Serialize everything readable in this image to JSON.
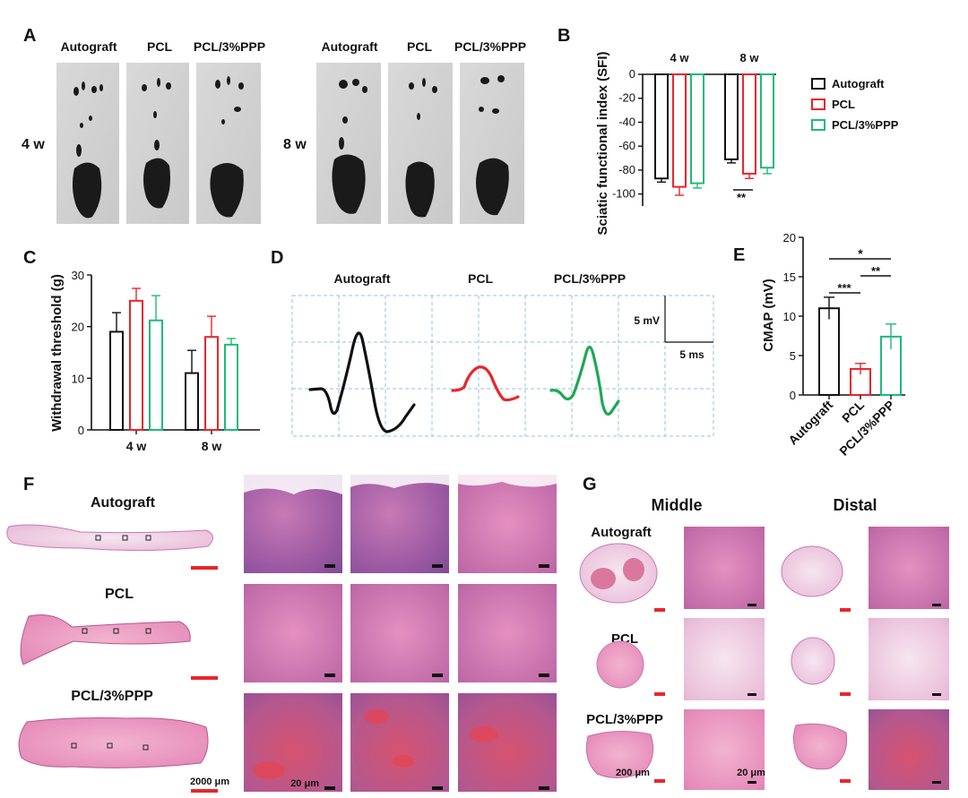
{
  "panels": {
    "A": {
      "letter": "A",
      "top_labels_left": [
        "Autograft",
        "PCL",
        "PCL/3%PPP"
      ],
      "top_labels_right": [
        "Autograft",
        "PCL",
        "PCL/3%PPP"
      ],
      "row_left": "4 w",
      "row_right": "8 w"
    },
    "B": {
      "letter": "B"
    },
    "C": {
      "letter": "C"
    },
    "D": {
      "letter": "D",
      "labels": [
        "Autograft",
        "PCL",
        "PCL/3%PPP"
      ],
      "scale_v": "5 mV",
      "scale_t": "5 ms"
    },
    "E": {
      "letter": "E"
    },
    "F": {
      "letter": "F",
      "row_labels": [
        "Autograft",
        "PCL",
        "PCL/3%PPP"
      ],
      "scale_big": "2000 μm",
      "scale_small": "20 μm"
    },
    "G": {
      "letter": "G",
      "col_middle": "Middle",
      "col_distal": "Distal",
      "row_labels": [
        "Autograft",
        "PCL",
        "PCL/3%PPP"
      ],
      "scale_big": "200 μm",
      "scale_small": "20 μm"
    }
  },
  "colors": {
    "autograft": "#111111",
    "pcl": "#e8262b",
    "ppp": "#1fba7a",
    "grid": "#8fc3e0",
    "scalebar": "#e8262b"
  },
  "chart_data": [
    {
      "id": "B",
      "type": "bar",
      "ylabel": "Sciatic functional index (SFI)",
      "categories": [
        "4 w",
        "8 w"
      ],
      "series": [
        {
          "name": "Autograft",
          "values": [
            -87,
            -71
          ],
          "errors": [
            3,
            3
          ]
        },
        {
          "name": "PCL",
          "values": [
            -94,
            -83
          ],
          "errors": [
            7,
            4
          ]
        },
        {
          "name": "PCL/3%PPP",
          "values": [
            -91,
            -78
          ],
          "errors": [
            4,
            5
          ]
        }
      ],
      "ylim": [
        -110,
        0
      ],
      "yticks": [
        0,
        -20,
        -40,
        -60,
        -80,
        -100
      ],
      "legend": [
        "Autograft",
        "PCL",
        "PCL/3%PPP"
      ],
      "annotations": [
        "**"
      ]
    },
    {
      "id": "C",
      "type": "bar",
      "ylabel": "Withdrawal threshold (g)",
      "categories": [
        "4 w",
        "8 w"
      ],
      "series": [
        {
          "name": "Autograft",
          "values": [
            19,
            11
          ],
          "errors": [
            3.7,
            4.4
          ]
        },
        {
          "name": "PCL",
          "values": [
            25,
            18
          ],
          "errors": [
            2.4,
            4
          ]
        },
        {
          "name": "PCL/3%PPP",
          "values": [
            21.2,
            16.5
          ],
          "errors": [
            4.8,
            1.2
          ]
        }
      ],
      "ylim": [
        0,
        30
      ],
      "yticks": [
        0,
        10,
        20,
        30
      ]
    },
    {
      "id": "E",
      "type": "bar",
      "ylabel": "CMAP (mV)",
      "categories": [
        "Autograft",
        "PCL",
        "PCL/3%PPP"
      ],
      "values": [
        11,
        3.3,
        7.4
      ],
      "errors": [
        1.4,
        0.7,
        1.6
      ],
      "ylim": [
        0,
        20
      ],
      "yticks": [
        0,
        5,
        10,
        15,
        20
      ],
      "annotations": [
        "***",
        "**",
        "*"
      ]
    }
  ]
}
